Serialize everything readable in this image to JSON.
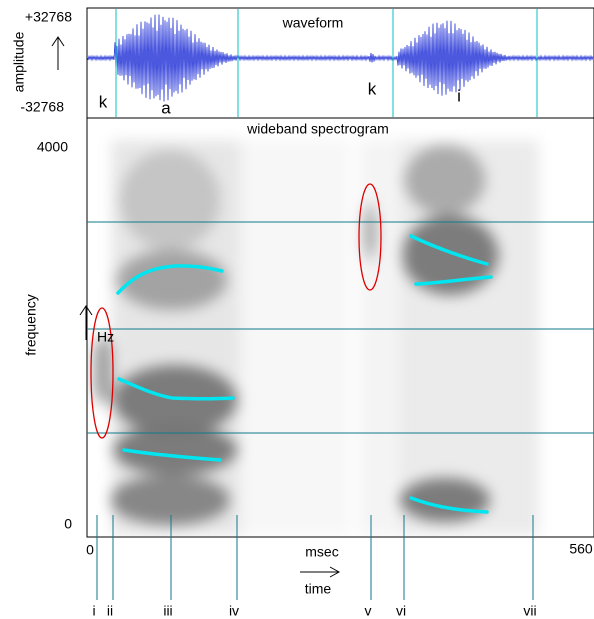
{
  "waveform": {
    "title": "waveform",
    "axis_label": "amplitude",
    "max_label": "+32768",
    "min_label": "-32768",
    "segment_labels": [
      "k",
      "a",
      "k",
      "i"
    ]
  },
  "spectrogram": {
    "title": "wideband spectrogram",
    "axis_label": "frequency",
    "unit": "Hz",
    "top_label": "4000",
    "bottom_label": "0"
  },
  "time_axis": {
    "start_label": "0",
    "end_label": "560",
    "unit": "msec",
    "label": "time"
  },
  "markers": [
    "i",
    "ii",
    "iii",
    "iv",
    "v",
    "vi",
    "vii"
  ]
}
